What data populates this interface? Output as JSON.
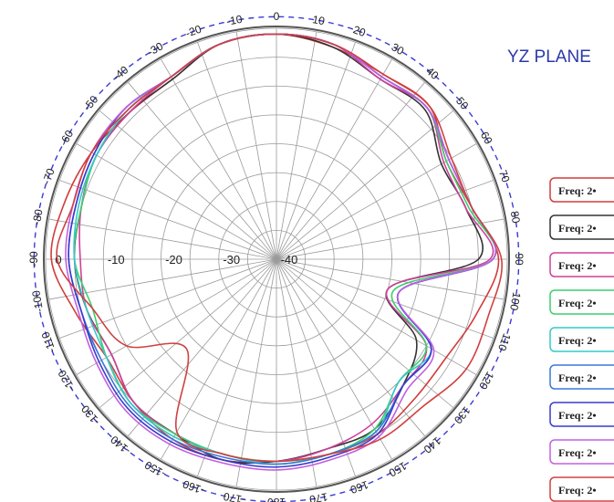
{
  "chart_data": {
    "type": "polar-line",
    "title": "YZ PLANE",
    "angle_unit": "deg",
    "angle_ticks": [
      0,
      10,
      20,
      30,
      40,
      50,
      60,
      70,
      80,
      90,
      100,
      110,
      120,
      130,
      140,
      150,
      160,
      170,
      180,
      -170,
      -160,
      -150,
      -140,
      -130,
      -120,
      -110,
      -100,
      -90,
      -80,
      -70,
      -60,
      -50,
      -40,
      -30,
      -20,
      -10
    ],
    "radial_ticks": [
      0,
      -10,
      -20,
      -30,
      -40
    ],
    "rlim": [
      -40,
      0
    ],
    "reference_ring_db": 2,
    "legend_position": "right",
    "angles": [
      0,
      15,
      30,
      45,
      60,
      75,
      90,
      105,
      120,
      135,
      150,
      165,
      180,
      195,
      210,
      225,
      240,
      255,
      270,
      285,
      300,
      315,
      330,
      345
    ],
    "series": [
      {
        "name": "Freq: 2•",
        "color": "#d23b3b",
        "values": [
          -1,
          -2,
          -3,
          -2.5,
          -6,
          -5,
          -1.5,
          -4,
          -6,
          -6,
          -5,
          -5,
          -5,
          -4,
          -4,
          -5,
          -6,
          -4,
          -1,
          -2,
          -3,
          -4,
          -4,
          -1.5
        ]
      },
      {
        "name": "Freq: 2•",
        "color": "#333333",
        "values": [
          -1,
          -2,
          -4,
          -3.5,
          -7,
          -6,
          -5,
          -20,
          -12,
          -9,
          -6,
          -6,
          -5,
          -4,
          -5,
          -5,
          -7,
          -6,
          -5,
          -5,
          -4,
          -4,
          -4,
          -1.5
        ]
      },
      {
        "name": "Freq: 2•",
        "color": "#d0409a",
        "values": [
          -1,
          -1.5,
          -4,
          -3,
          -6.5,
          -6,
          -3,
          -20,
          -10,
          -9,
          -7,
          -6,
          -5,
          -5,
          -5,
          -5,
          -7,
          -6,
          -6,
          -5,
          -4,
          -4,
          -3.5,
          -1.5
        ]
      },
      {
        "name": "Freq: 2•",
        "color": "#3ccf6e",
        "values": [
          -1,
          -1.5,
          -3.5,
          -3,
          -6,
          -5.5,
          -2.5,
          -19,
          -10,
          -10,
          -6,
          -5,
          -5,
          -5,
          -5,
          -4.5,
          -6,
          -7,
          -5,
          -5,
          -4,
          -3.5,
          -3.5,
          -1.5
        ]
      },
      {
        "name": "Freq: 2•",
        "color": "#36c8c8",
        "values": [
          -1,
          -1.5,
          -3.5,
          -3,
          -5.5,
          -5,
          -2.5,
          -18,
          -9,
          -10,
          -5.5,
          -5,
          -4.5,
          -5,
          -4.5,
          -4.5,
          -6,
          -6,
          -5,
          -4.5,
          -4,
          -3.5,
          -3.5,
          -1.5
        ]
      },
      {
        "name": "Freq: 2•",
        "color": "#3a78d8",
        "values": [
          -1,
          -1.5,
          -3.5,
          -3,
          -5.5,
          -5,
          -2.5,
          -18,
          -9,
          -9,
          -5.5,
          -5,
          -4.5,
          -4.5,
          -4,
          -4,
          -5,
          -5,
          -4,
          -4,
          -3.5,
          -3,
          -3.5,
          -1.5
        ]
      },
      {
        "name": "Freq: 2•",
        "color": "#3a3acc",
        "values": [
          -1,
          -1.5,
          -3.5,
          -3,
          -5.5,
          -5,
          -2.5,
          -18,
          -9,
          -9,
          -5,
          -4.5,
          -4,
          -4,
          -3.5,
          -3.5,
          -4.5,
          -5,
          -4,
          -4,
          -3.5,
          -3,
          -3.5,
          -1.5
        ]
      },
      {
        "name": "Freq: 2•",
        "color": "#c060e0",
        "values": [
          -1,
          -1.5,
          -3.5,
          -3,
          -5.5,
          -5,
          -2.5,
          -18,
          -8.5,
          -8,
          -4.5,
          -4,
          -3.5,
          -3.5,
          -3,
          -3,
          -4,
          -4.5,
          -3.5,
          -3.5,
          -3,
          -3,
          -3.5,
          -1.5
        ]
      },
      {
        "name": "Freq: 2•",
        "color": "#d04040",
        "values": [
          -1,
          -1.5,
          -3,
          -2.5,
          -5,
          -5,
          -1,
          -2,
          -2,
          -4,
          -4,
          -5,
          -5,
          -5,
          -5.5,
          -18,
          -10,
          -7,
          -2,
          -3.5,
          -3,
          -3.5,
          -3.5,
          -1.5
        ]
      }
    ]
  }
}
